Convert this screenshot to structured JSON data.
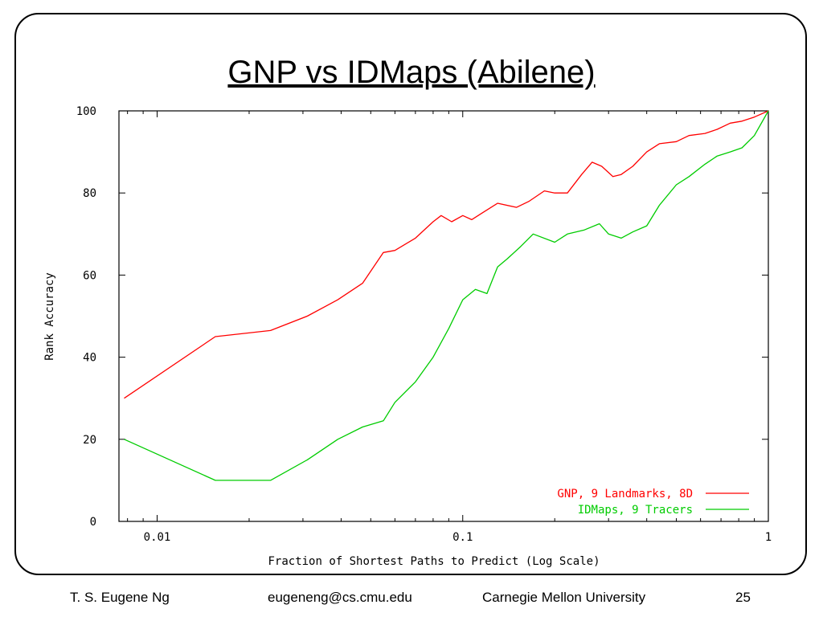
{
  "slide": {
    "title": "GNP vs IDMaps (Abilene)",
    "footer_author": "T. S. Eugene Ng",
    "footer_email": "eugeneng@cs.cmu.edu",
    "footer_org": "Carnegie Mellon University",
    "page_number": "25"
  },
  "chart_data": {
    "type": "line",
    "xlabel": "Fraction of Shortest Paths to Predict (Log Scale)",
    "ylabel": "Rank Accuracy",
    "x_scale": "log",
    "xlim": [
      0.0075,
      1
    ],
    "ylim": [
      0,
      100
    ],
    "x_ticks": [
      {
        "value": 0.01,
        "label": "0.01"
      },
      {
        "value": 0.1,
        "label": "0.1"
      },
      {
        "value": 1,
        "label": "1"
      }
    ],
    "y_ticks": [
      0,
      20,
      40,
      60,
      80,
      100
    ],
    "grid": false,
    "legend_position": "bottom-right",
    "series": [
      {
        "name": "GNP, 9 Landmarks, 8D",
        "color": "#ff0000",
        "x": [
          0.0078,
          0.0155,
          0.0235,
          0.031,
          0.039,
          0.047,
          0.055,
          0.06,
          0.07,
          0.08,
          0.085,
          0.092,
          0.1,
          0.107,
          0.115,
          0.13,
          0.15,
          0.165,
          0.185,
          0.2,
          0.22,
          0.245,
          0.265,
          0.285,
          0.31,
          0.33,
          0.36,
          0.4,
          0.44,
          0.5,
          0.55,
          0.62,
          0.68,
          0.75,
          0.82,
          0.9,
          1.0
        ],
        "y": [
          30,
          45,
          46.5,
          50,
          54,
          58,
          65.5,
          66,
          69,
          73,
          74.5,
          73,
          74.5,
          73.5,
          75,
          77.5,
          76.5,
          78,
          80.5,
          80,
          80,
          84.5,
          87.5,
          86.5,
          84,
          84.5,
          86.5,
          90,
          92,
          92.5,
          94,
          94.5,
          95.5,
          97,
          97.5,
          98.5,
          100
        ]
      },
      {
        "name": "IDMaps, 9 Tracers",
        "color": "#00cc00",
        "x": [
          0.0078,
          0.0155,
          0.0235,
          0.031,
          0.039,
          0.047,
          0.055,
          0.06,
          0.07,
          0.08,
          0.09,
          0.1,
          0.11,
          0.12,
          0.13,
          0.14,
          0.155,
          0.17,
          0.2,
          0.22,
          0.25,
          0.28,
          0.3,
          0.33,
          0.36,
          0.4,
          0.44,
          0.5,
          0.55,
          0.62,
          0.68,
          0.75,
          0.82,
          0.9,
          1.0
        ],
        "y": [
          20,
          10,
          10,
          15,
          20,
          23,
          24.5,
          29,
          34,
          40,
          47,
          54,
          56.5,
          55.5,
          62,
          64,
          67,
          70,
          68,
          70,
          71,
          72.5,
          70,
          69,
          70.5,
          72,
          77,
          82,
          84,
          87,
          89,
          90,
          91,
          94,
          100
        ]
      }
    ]
  }
}
